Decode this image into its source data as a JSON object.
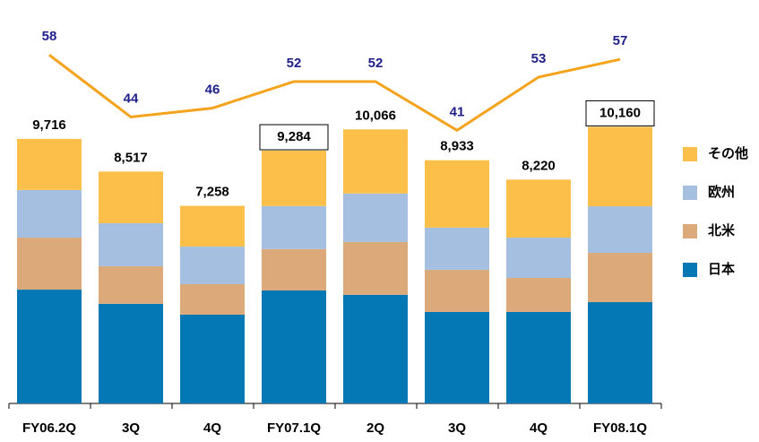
{
  "chart_data": {
    "type": "stacked-bar-line",
    "categories": [
      "FY06.2Q",
      "3Q",
      "4Q",
      "FY07.1Q",
      "2Q",
      "3Q",
      "4Q",
      "FY08.1Q"
    ],
    "series": [
      {
        "name": "日本",
        "color": "#0478b4",
        "values": [
          4180,
          3660,
          3260,
          4150,
          3990,
          3360,
          3360,
          3720
        ]
      },
      {
        "name": "北米",
        "color": "#dba97a",
        "values": [
          1910,
          1380,
          1120,
          1520,
          1940,
          1550,
          1250,
          1810
        ]
      },
      {
        "name": "欧州",
        "color": "#a4bfe0",
        "values": [
          1750,
          1580,
          1380,
          1580,
          1780,
          1550,
          1480,
          1710
        ]
      },
      {
        "name": "その他",
        "color": "#fcc04a",
        "values": [
          1876,
          1897,
          1498,
          2034,
          2356,
          2473,
          2130,
          2920
        ]
      }
    ],
    "totals": [
      9716,
      8517,
      7258,
      9284,
      10066,
      8933,
      8220,
      10160
    ],
    "total_labels": [
      "9,716",
      "8,517",
      "7,258",
      "9,284",
      "10,066",
      "8,933",
      "8,220",
      "10,160"
    ],
    "boxed_totals": [
      false,
      false,
      false,
      true,
      false,
      false,
      false,
      true
    ],
    "line": {
      "color": "#f5a21c",
      "label_color": "#1f1f8a",
      "axis": "y2",
      "values": [
        58,
        44,
        46,
        52,
        52,
        41,
        53,
        57
      ]
    },
    "ylim": [
      0,
      13500
    ],
    "y2lim": [
      -20.6,
      62.3
    ],
    "legend": "right"
  }
}
